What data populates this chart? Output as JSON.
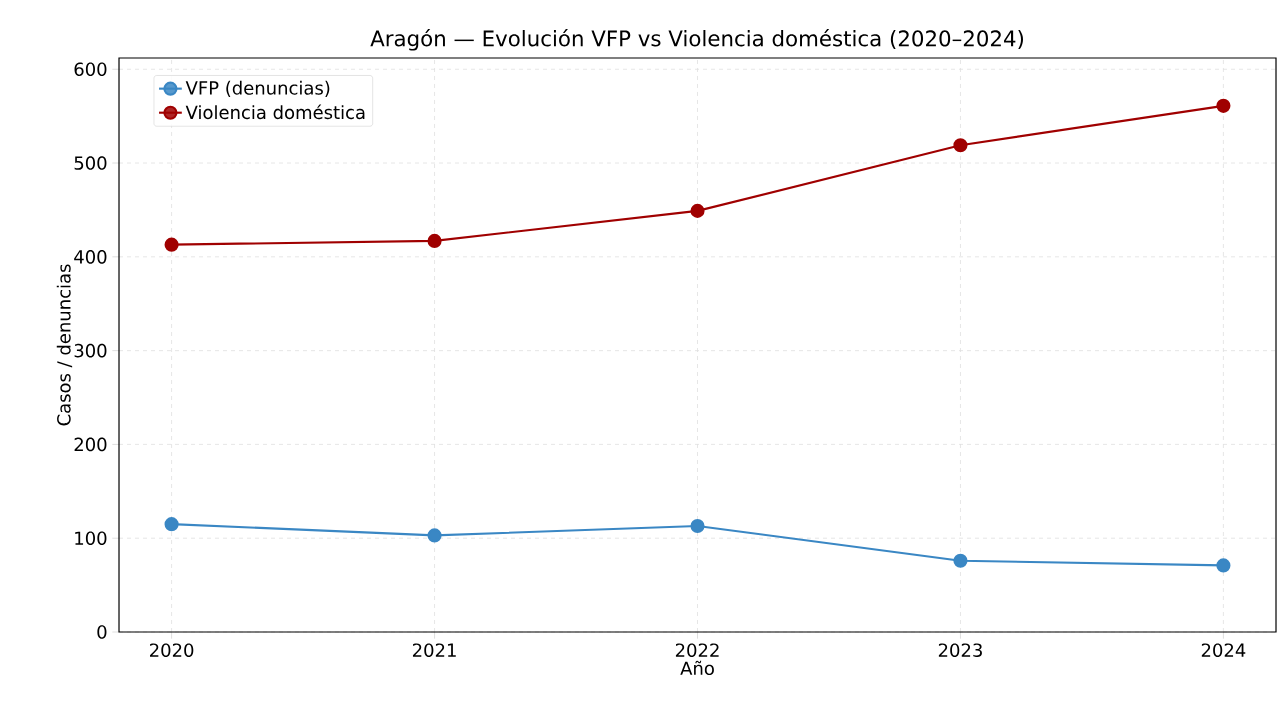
{
  "chart_data": {
    "type": "line",
    "title": "Aragón — Evolución VFP vs Violencia doméstica (2020–2024)",
    "xlabel": "Año",
    "ylabel": "Casos / denuncias",
    "x": [
      2020,
      2021,
      2022,
      2023,
      2024
    ],
    "series": [
      {
        "name": "VFP (denuncias)",
        "color": "#3a87c4",
        "values": [
          115,
          103,
          113,
          76,
          71
        ]
      },
      {
        "name": "Violencia doméstica",
        "color": "#a00000",
        "values": [
          413,
          417,
          449,
          519,
          561
        ]
      }
    ],
    "xlim": [
      2019.8,
      2024.2
    ],
    "xticks": [
      2020,
      2021,
      2022,
      2023,
      2024
    ],
    "ylim": [
      0,
      612
    ],
    "yticks": [
      0,
      100,
      200,
      300,
      400,
      500,
      600
    ],
    "grid": true,
    "legend": "top left",
    "marker": "circle",
    "line_style": "solid"
  }
}
